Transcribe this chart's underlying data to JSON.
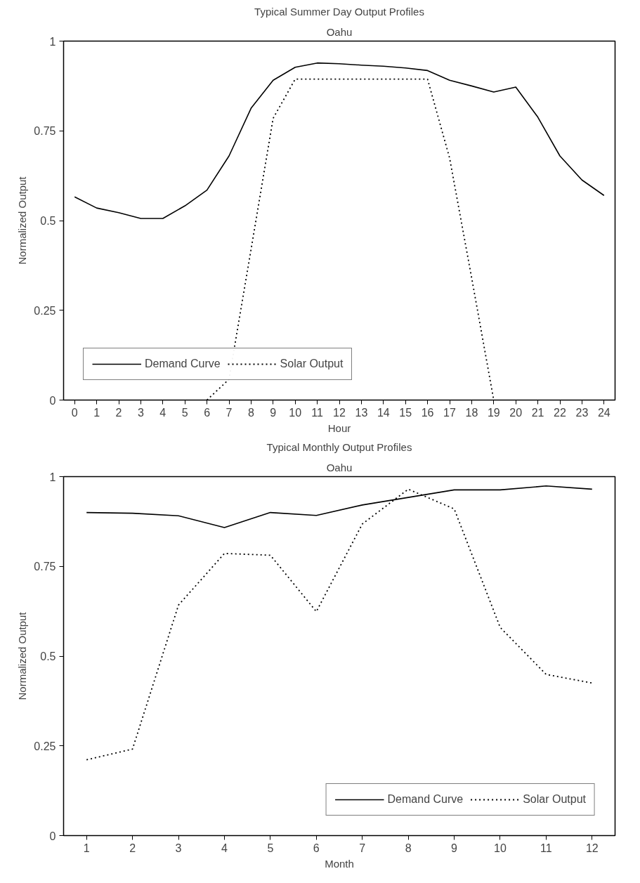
{
  "chart_data": [
    {
      "type": "line",
      "title": "Typical Summer Day Output Profiles",
      "subtitle": "Oahu",
      "xlabel": "Hour",
      "ylabel": "Normalized Output",
      "x": [
        0,
        1,
        2,
        3,
        4,
        5,
        6,
        7,
        8,
        9,
        10,
        11,
        12,
        13,
        14,
        15,
        16,
        17,
        18,
        19,
        20,
        21,
        22,
        23,
        24
      ],
      "series": [
        {
          "name": "Demand Curve",
          "color": "#000000",
          "line_style": "solid",
          "values": [
            0.566,
            0.535,
            0.522,
            0.506,
            0.506,
            0.541,
            0.585,
            0.68,
            0.813,
            0.891,
            0.927,
            0.939,
            0.937,
            0.933,
            0.93,
            0.925,
            0.918,
            0.891,
            0.875,
            0.858,
            0.872,
            0.788,
            0.68,
            0.613,
            0.57
          ]
        },
        {
          "name": "Solar Output",
          "color": "#000000",
          "line_style": "dotted",
          "x": [
            6,
            7,
            8,
            9,
            10,
            11,
            12,
            13,
            14,
            15,
            16,
            17,
            18,
            19
          ],
          "values": [
            0,
            0.058,
            0.42,
            0.785,
            0.894,
            0.894,
            0.894,
            0.894,
            0.894,
            0.894,
            0.894,
            0.674,
            0.34,
            0
          ]
        }
      ],
      "xlim": [
        -0.5,
        24.5
      ],
      "xticks": [
        0,
        1,
        2,
        3,
        4,
        5,
        6,
        7,
        8,
        9,
        10,
        11,
        12,
        13,
        14,
        15,
        16,
        17,
        18,
        19,
        20,
        21,
        22,
        23,
        24
      ],
      "ylim": [
        0,
        1
      ],
      "yticks": [
        0,
        0.25,
        0.5,
        0.75,
        1
      ],
      "grid": false,
      "legend": "bottom left",
      "marker": "none"
    },
    {
      "type": "line",
      "title": "Typical Monthly Output Profiles",
      "subtitle": "Oahu",
      "xlabel": "Month",
      "ylabel": "Normalized Output",
      "x": [
        1,
        2,
        3,
        4,
        5,
        6,
        7,
        8,
        9,
        10,
        11,
        12
      ],
      "series": [
        {
          "name": "Demand Curve",
          "color": "#000000",
          "line_style": "solid",
          "values": [
            0.9,
            0.898,
            0.891,
            0.858,
            0.9,
            0.892,
            0.921,
            0.942,
            0.963,
            0.963,
            0.974,
            0.965
          ]
        },
        {
          "name": "Solar Output",
          "color": "#000000",
          "line_style": "dotted",
          "values": [
            0.211,
            0.241,
            0.642,
            0.786,
            0.781,
            0.624,
            0.868,
            0.965,
            0.91,
            0.58,
            0.449,
            0.425
          ]
        }
      ],
      "xlim": [
        0.5,
        12.5
      ],
      "xticks": [
        1,
        2,
        3,
        4,
        5,
        6,
        7,
        8,
        9,
        10,
        11,
        12
      ],
      "ylim": [
        0,
        1
      ],
      "yticks": [
        0,
        0.25,
        0.5,
        0.75,
        1
      ],
      "grid": false,
      "legend": "bottom right",
      "marker": "none"
    }
  ]
}
